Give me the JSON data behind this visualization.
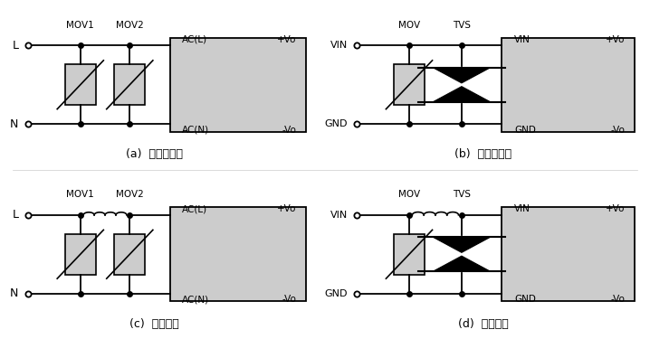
{
  "bg_color": "#ffffff",
  "box_color": "#cccccc",
  "line_color": "#000000",
  "component_fill": "#cccccc",
  "panels": [
    {
      "label": "(a)  不恮当应用",
      "type": "AC_double_MOV",
      "has_inductor": false,
      "left_label_top": "L",
      "left_label_bot": "N",
      "component1": "MOV1",
      "component2": "MOV2",
      "box_labels": [
        "AC(L)",
        "AC(N)",
        "+Vo",
        "-Vo"
      ]
    },
    {
      "label": "(b)  不恮当应用",
      "type": "DC_MOV_TVS",
      "has_inductor": false,
      "left_label_top": "VIN",
      "left_label_bot": "GND",
      "component1": "MOV",
      "component2": "TVS",
      "box_labels": [
        "VIN",
        "GND",
        "+Vo",
        "-Vo"
      ]
    },
    {
      "label": "(c)  推荐应用",
      "type": "AC_double_MOV",
      "has_inductor": true,
      "left_label_top": "L",
      "left_label_bot": "N",
      "component1": "MOV1",
      "component2": "MOV2",
      "box_labels": [
        "AC(L)",
        "AC(N)",
        "+Vo",
        "-Vo"
      ]
    },
    {
      "label": "(d)  推荐应用",
      "type": "DC_MOV_TVS",
      "has_inductor": true,
      "left_label_top": "VIN",
      "left_label_bot": "GND",
      "component1": "MOV",
      "component2": "TVS",
      "box_labels": [
        "VIN",
        "GND",
        "+Vo",
        "-Vo"
      ]
    }
  ]
}
